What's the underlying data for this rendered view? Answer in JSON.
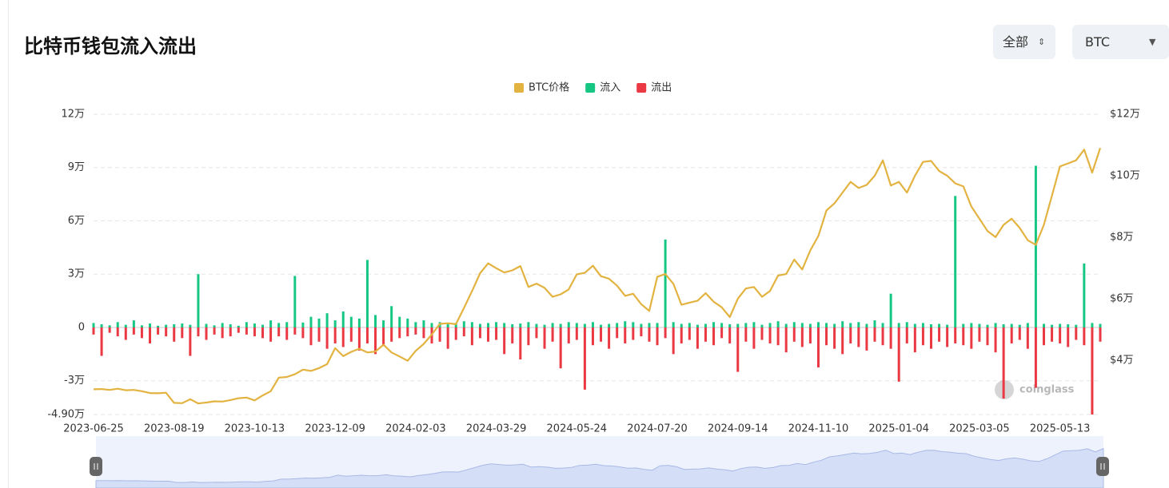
{
  "header": {
    "title": "比特币钱包流入流出",
    "range_button": "全部",
    "coin_select": "BTC"
  },
  "chart_data": {
    "type": "combo",
    "legend": "top",
    "grid": true,
    "watermark": "coinglass",
    "categories": [
      "2023-06-25",
      null,
      null,
      null,
      null,
      null,
      null,
      null,
      null,
      null,
      "2023-08-19",
      null,
      null,
      null,
      null,
      null,
      null,
      null,
      null,
      null,
      "2023-10-13",
      null,
      null,
      null,
      null,
      null,
      null,
      null,
      null,
      null,
      "2023-12-09",
      null,
      null,
      null,
      null,
      null,
      null,
      null,
      null,
      null,
      "2024-02-03",
      null,
      null,
      null,
      null,
      null,
      null,
      null,
      null,
      null,
      "2024-03-29",
      null,
      null,
      null,
      null,
      null,
      null,
      null,
      null,
      null,
      "2024-05-24",
      null,
      null,
      null,
      null,
      null,
      null,
      null,
      null,
      null,
      "2024-07-20",
      null,
      null,
      null,
      null,
      null,
      null,
      null,
      null,
      null,
      "2024-09-14",
      null,
      null,
      null,
      null,
      null,
      null,
      null,
      null,
      null,
      "2024-11-10",
      null,
      null,
      null,
      null,
      null,
      null,
      null,
      null,
      null,
      "2025-01-04",
      null,
      null,
      null,
      null,
      null,
      null,
      null,
      null,
      null,
      "2025-03-05",
      null,
      null,
      null,
      null,
      null,
      null,
      null,
      null,
      null,
      "2025-05-13",
      null,
      null,
      null,
      null,
      null
    ],
    "ylim": [
      -49000,
      120000
    ],
    "yticks": [
      {
        "value": -49000,
        "label": "-4.90万"
      },
      {
        "value": -30000,
        "label": "-3万"
      },
      0,
      {
        "value": 30000,
        "label": "3万"
      },
      {
        "value": 60000,
        "label": "6万"
      },
      {
        "value": 90000,
        "label": "9万"
      },
      {
        "value": 120000,
        "label": "12万"
      }
    ],
    "y2lim": [
      22300,
      120000
    ],
    "y2ticks": [
      {
        "value": 40000,
        "label": "$4万"
      },
      {
        "value": 60000,
        "label": "$6万"
      },
      {
        "value": 80000,
        "label": "$8万"
      },
      {
        "value": 100000,
        "label": "$10万"
      },
      {
        "value": 120000,
        "label": "$12万"
      }
    ],
    "series": [
      {
        "name": "BTC价格",
        "type": "line",
        "axis": "y2",
        "color": "#e3b341",
        "values": [
          30500,
          30600,
          30300,
          30700,
          30200,
          30300,
          29900,
          29300,
          29200,
          29400,
          26100,
          26000,
          27300,
          25900,
          26200,
          26600,
          26500,
          27000,
          27600,
          27800,
          26900,
          28500,
          29900,
          34300,
          34500,
          35400,
          36900,
          36500,
          37400,
          38700,
          43900,
          41300,
          42700,
          43700,
          42500,
          42800,
          45000,
          42500,
          41200,
          39800,
          43000,
          45300,
          48300,
          51800,
          52000,
          51700,
          57000,
          62500,
          68300,
          71500,
          69900,
          68500,
          69200,
          70600,
          63800,
          64900,
          63500,
          60600,
          61400,
          63000,
          67900,
          68400,
          70700,
          67300,
          66500,
          64200,
          60900,
          61600,
          58200,
          56000,
          67100,
          68000,
          64800,
          58000,
          58700,
          59300,
          61800,
          59000,
          57200,
          54000,
          60000,
          63300,
          63800,
          60600,
          62500,
          67500,
          68000,
          72700,
          69500,
          75700,
          80400,
          88700,
          91000,
          94500,
          98000,
          96000,
          97000,
          100000,
          105000,
          96800,
          98000,
          94500,
          100000,
          104500,
          104800,
          101500,
          100000,
          97500,
          96500,
          90000,
          86000,
          82000,
          80000,
          84000,
          86000,
          83000,
          79000,
          77500,
          84000,
          93500,
          103000,
          104000,
          105000,
          108500,
          101000,
          109000
        ]
      },
      {
        "name": "流入",
        "type": "bar",
        "color": "#16c784",
        "values": [
          2500,
          1800,
          1200,
          3000,
          1500,
          4000,
          1200,
          2200,
          1000,
          1500,
          1800,
          2200,
          1500,
          30000,
          2000,
          1200,
          2500,
          1800,
          1000,
          3000,
          2200,
          1500,
          4000,
          2500,
          3000,
          29000,
          2800,
          6000,
          5000,
          8000,
          4000,
          9000,
          6000,
          5000,
          38000,
          7000,
          4000,
          12000,
          6000,
          5000,
          3000,
          4000,
          2500,
          3000,
          2000,
          2500,
          3500,
          3000,
          2000,
          2500,
          3000,
          2500,
          1800,
          2200,
          3000,
          2000,
          1500,
          2500,
          2000,
          3000,
          2500,
          2000,
          3000,
          1500,
          2000,
          2500,
          3500,
          3000,
          2000,
          2500,
          2500,
          49500,
          3000,
          2000,
          2500,
          1500,
          2000,
          3000,
          2500,
          1800,
          2000,
          2500,
          3000,
          1500,
          2500,
          3500,
          2000,
          3000,
          2500,
          2000,
          3000,
          2500,
          2000,
          3500,
          2500,
          3000,
          2000,
          4000,
          2500,
          19000,
          2500,
          3000,
          2000,
          2500,
          1800,
          2000,
          1500,
          74000,
          2000,
          2500,
          2000,
          1500,
          2500,
          1800,
          2000,
          1500,
          2500,
          91000,
          2000,
          1500,
          2000,
          1800,
          1500,
          36000,
          2500,
          2000
        ]
      },
      {
        "name": "流出",
        "type": "bar",
        "color": "#ea3943",
        "values": [
          -4000,
          -16000,
          -3000,
          -5000,
          -7000,
          -4000,
          -6000,
          -9000,
          -4000,
          -5000,
          -8000,
          -6000,
          -16000,
          -5000,
          -7000,
          -4000,
          -6000,
          -5000,
          -3000,
          -4000,
          -5000,
          -6000,
          -8000,
          -5000,
          -7000,
          -4000,
          -6000,
          -10000,
          -8000,
          -12000,
          -9000,
          -11000,
          -8000,
          -13000,
          -9000,
          -15000,
          -10000,
          -8000,
          -6000,
          -5000,
          -4000,
          -6000,
          -9000,
          -8000,
          -12000,
          -7000,
          -5000,
          -10000,
          -6000,
          -8000,
          -7000,
          -15000,
          -9000,
          -18000,
          -10000,
          -6000,
          -12000,
          -8000,
          -23000,
          -9000,
          -7000,
          -35000,
          -10000,
          -8000,
          -12000,
          -6000,
          -9000,
          -7000,
          -5000,
          -8000,
          -10000,
          -6000,
          -15000,
          -9000,
          -7000,
          -12000,
          -8000,
          -10000,
          -6000,
          -9000,
          -25000,
          -8000,
          -12000,
          -7000,
          -9000,
          -10000,
          -14000,
          -8000,
          -11000,
          -9000,
          -22500,
          -10000,
          -12000,
          -15000,
          -9000,
          -11000,
          -13000,
          -8000,
          -10000,
          -12000,
          -30500,
          -9000,
          -14000,
          -10000,
          -12000,
          -8000,
          -11000,
          -9000,
          -10000,
          -12000,
          -8000,
          -10000,
          -14000,
          -40000,
          -9000,
          -7000,
          -12000,
          -34000,
          -10000,
          -8000,
          -9000,
          -11000,
          -7000,
          -10000,
          -49000,
          -8000
        ]
      }
    ]
  }
}
